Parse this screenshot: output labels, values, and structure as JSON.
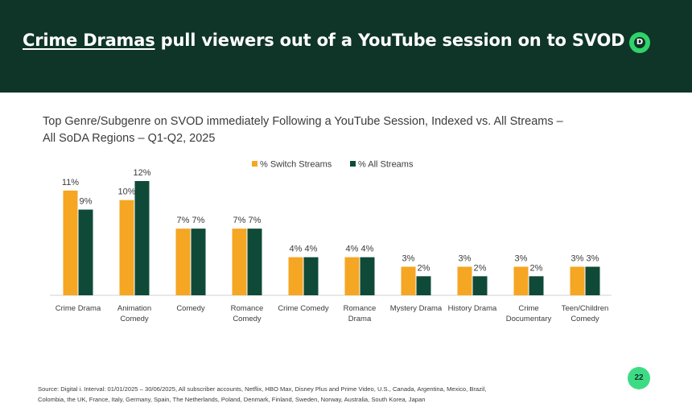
{
  "header": {
    "title_highlight": "Crime Dramas",
    "title_rest": " pull viewers out of a YouTube session on to SVOD",
    "logo_letter": "D"
  },
  "subtitle": {
    "line1": "Top Genre/Subgenre on SVOD immediately Following a YouTube Session, Indexed vs. All Streams –",
    "line2": "All SoDA Regions – Q1-Q2, 2025"
  },
  "chart_data": {
    "type": "bar",
    "title": "Top Genre/Subgenre on SVOD immediately Following a YouTube Session, Indexed vs. All Streams – All SoDA Regions – Q1-Q2, 2025",
    "categories": [
      [
        "Crime Drama"
      ],
      [
        "Animation",
        "Comedy"
      ],
      [
        "Comedy"
      ],
      [
        "Romance",
        "Comedy"
      ],
      [
        "Crime Comedy"
      ],
      [
        "Romance",
        "Drama"
      ],
      [
        "Mystery Drama"
      ],
      [
        "History Drama"
      ],
      [
        "Crime",
        "Documentary"
      ],
      [
        "Teen/Children",
        "Comedy"
      ]
    ],
    "series": [
      {
        "name": "% Switch Streams",
        "color": "#f5a623",
        "values": [
          11,
          10,
          7,
          7,
          4,
          4,
          3,
          3,
          3,
          3
        ]
      },
      {
        "name": "% All Streams",
        "color": "#0f4a38",
        "values": [
          9,
          12,
          7,
          7,
          4,
          4,
          2,
          2,
          2,
          3
        ]
      }
    ],
    "value_suffix": "%",
    "ylim": [
      0,
      12
    ],
    "legend_position": "top-center",
    "grid": false,
    "xlabel": "",
    "ylabel": ""
  },
  "page_number": "22",
  "source": {
    "line1": "Source: Digital i. Interval: 01/01/2025 – 30/06/2025, All subscriber accounts, Netflix, HBO Max, Disney Plus and Prime Video, U.S., Canada, Argentina, Mexico, Brazil,",
    "line2": "Colombia, the UK, France, Italy, Germany, Spain, The Netherlands, Poland, Denmark, Finland, Sweden, Norway, Australia, South Korea, Japan"
  }
}
